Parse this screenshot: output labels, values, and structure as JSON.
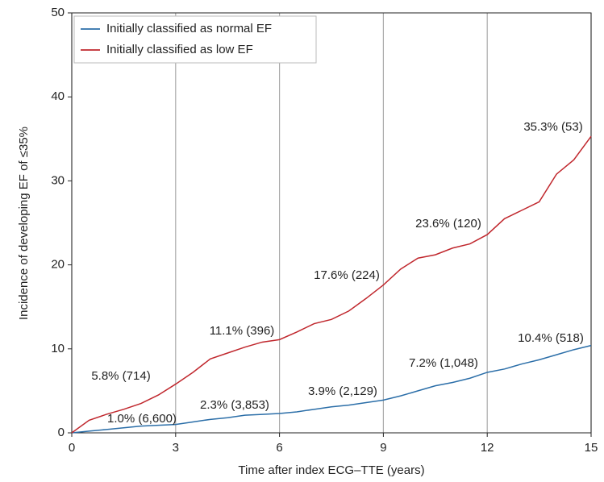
{
  "chart_data": {
    "type": "line",
    "x_label": "Time after index ECG–TTE (years)",
    "y_label": "Incidence of developing EF of ≤35%",
    "x": [
      0,
      0.5,
      1,
      1.5,
      2,
      2.5,
      3,
      3.5,
      4,
      4.5,
      5,
      5.5,
      6,
      6.5,
      7,
      7.5,
      8,
      8.5,
      9,
      9.5,
      10,
      10.5,
      11,
      11.5,
      12,
      12.5,
      13,
      13.5,
      14,
      14.5,
      15
    ],
    "series": [
      {
        "name": "Initially classified as normal EF",
        "color": "#2b6ea8",
        "values": [
          0,
          0.2,
          0.4,
          0.6,
          0.8,
          0.9,
          1.0,
          1.3,
          1.6,
          1.8,
          2.1,
          2.2,
          2.3,
          2.5,
          2.8,
          3.1,
          3.3,
          3.6,
          3.9,
          4.4,
          5.0,
          5.6,
          6.0,
          6.5,
          7.2,
          7.6,
          8.2,
          8.7,
          9.3,
          9.9,
          10.4
        ]
      },
      {
        "name": "Initially classified as low EF",
        "color": "#c0272d",
        "values": [
          0,
          1.5,
          2.2,
          2.8,
          3.5,
          4.5,
          5.8,
          7.2,
          8.8,
          9.5,
          10.2,
          10.8,
          11.1,
          12,
          13,
          13.5,
          14.5,
          16,
          17.6,
          19.5,
          20.8,
          21.2,
          22,
          22.5,
          23.6,
          25.5,
          26.5,
          27.5,
          30.8,
          32.5,
          35.3
        ]
      }
    ],
    "annotations": [
      "1.0% (6,600)",
      "2.3% (3,853)",
      "3.9% (2,129)",
      "7.2% (1,048)",
      "10.4% (518)",
      "5.8% (714)",
      "11.1% (396)",
      "17.6% (224)",
      "23.6% (120)",
      "35.3% (53)"
    ],
    "xlim": [
      0,
      15
    ],
    "xticks": [
      0,
      3,
      6,
      9,
      12,
      15
    ],
    "ylim": [
      0,
      50
    ],
    "yticks": [
      0,
      10,
      20,
      30,
      40,
      50
    ],
    "grid": "x",
    "legend": "upper left"
  }
}
